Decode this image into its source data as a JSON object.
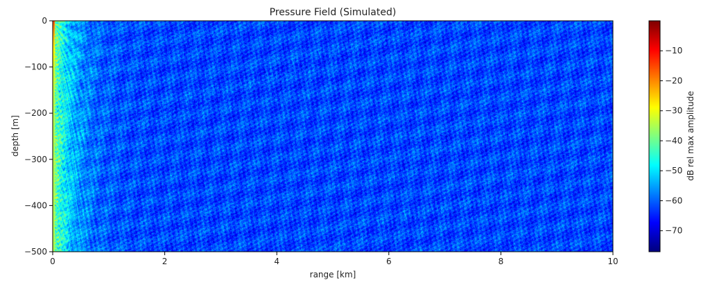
{
  "chart_data": {
    "type": "heatmap",
    "title": "Pressure Field (Simulated)",
    "xlabel": "range [km]",
    "ylabel": "depth [m]",
    "xlim": [
      0,
      10
    ],
    "ylim": [
      -500,
      0
    ],
    "xticks": [
      0,
      2,
      4,
      6,
      8,
      10
    ],
    "xtick_labels": [
      "0",
      "2",
      "4",
      "6",
      "8",
      "10"
    ],
    "yticks": [
      0,
      -100,
      -200,
      -300,
      -400,
      -500
    ],
    "ytick_labels": [
      "0",
      "−100",
      "−200",
      "−300",
      "−400",
      "−500"
    ],
    "colorbar": {
      "label": "dB rel max amplitude",
      "colormap": "jet",
      "range": [
        -77,
        0
      ],
      "ticks": [
        -10,
        -20,
        -30,
        -40,
        -50,
        -60,
        -70
      ],
      "tick_labels": [
        "−10",
        "−20",
        "−30",
        "−40",
        "−50",
        "−60",
        "−70"
      ]
    },
    "field_summary": {
      "source_depth_m": 0,
      "near_source_level_db": -30,
      "far_field_level_db": -62
    },
    "grid": false
  }
}
